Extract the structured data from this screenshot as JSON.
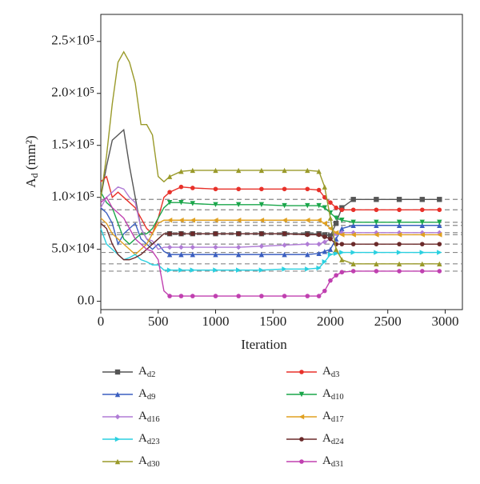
{
  "chart_data": {
    "type": "line",
    "xlabel": "Iteration",
    "ylabel": "Ad (mm²)",
    "x": [
      0,
      50,
      100,
      150,
      200,
      250,
      300,
      350,
      400,
      450,
      500,
      550,
      600,
      700,
      800,
      1000,
      1200,
      1400,
      1600,
      1800,
      1900,
      1950,
      2000,
      2050,
      2100,
      2200,
      2400,
      2600,
      2800,
      2950
    ],
    "xlim": [
      0,
      3150
    ],
    "xticks": [
      0,
      500,
      1000,
      1500,
      2000,
      2500,
      3000
    ],
    "ylim": [
      -8000,
      276000
    ],
    "yticks": [
      {
        "value": 0,
        "label": "0.0"
      },
      {
        "value": 50000,
        "label": "5.0×10⁴"
      },
      {
        "value": 100000,
        "label": "1.0×10⁵"
      },
      {
        "value": 150000,
        "label": "1.5×10⁵"
      },
      {
        "value": 200000,
        "label": "2.0×10⁵"
      },
      {
        "value": 250000,
        "label": "2.5×10⁵"
      }
    ],
    "reference_lines": [
      98000,
      88000,
      76000,
      73000,
      66000,
      64000,
      55000,
      47000,
      36000,
      29000
    ],
    "series": [
      {
        "name": "Ad2",
        "color": "#555555",
        "marker": "square",
        "values": [
          100000,
          130000,
          155000,
          160000,
          165000,
          130000,
          100000,
          70000,
          60000,
          55000,
          60000,
          65000,
          65000,
          65000,
          65000,
          65000,
          65000,
          65000,
          65000,
          65000,
          65000,
          64000,
          63000,
          75000,
          90000,
          98000,
          98000,
          98000,
          98000,
          98000
        ]
      },
      {
        "name": "Ad3",
        "color": "#e8312a",
        "marker": "circle",
        "values": [
          115000,
          120000,
          100000,
          105000,
          100000,
          95000,
          90000,
          80000,
          70000,
          65000,
          80000,
          100000,
          105000,
          110000,
          109000,
          108000,
          108000,
          108000,
          108000,
          108000,
          107000,
          100000,
          95000,
          90000,
          88000,
          88000,
          88000,
          88000,
          88000,
          88000
        ]
      },
      {
        "name": "Ad9",
        "color": "#3b5fc0",
        "marker": "up",
        "values": [
          90000,
          85000,
          75000,
          55000,
          65000,
          70000,
          75000,
          60000,
          55000,
          50000,
          55000,
          48000,
          45000,
          45000,
          45000,
          45000,
          45000,
          45000,
          45000,
          45000,
          46000,
          48000,
          50000,
          60000,
          70000,
          73000,
          73000,
          73000,
          73000,
          73000
        ]
      },
      {
        "name": "Ad10",
        "color": "#1aa64a",
        "marker": "down",
        "values": [
          105000,
          95000,
          90000,
          75000,
          60000,
          55000,
          60000,
          65000,
          65000,
          70000,
          80000,
          90000,
          95000,
          95000,
          94000,
          93000,
          93000,
          93000,
          92000,
          92000,
          92000,
          90000,
          85000,
          80000,
          78000,
          76000,
          76000,
          76000,
          76000,
          76000
        ]
      },
      {
        "name": "Ad16",
        "color": "#b07cd6",
        "marker": "diamond",
        "values": [
          90000,
          100000,
          105000,
          110000,
          108000,
          100000,
          95000,
          70000,
          60000,
          58000,
          50000,
          52000,
          52000,
          52000,
          52000,
          52000,
          52000,
          53000,
          54000,
          55000,
          55000,
          57000,
          60000,
          65000,
          66000,
          66000,
          66000,
          66000,
          66000,
          66000
        ]
      },
      {
        "name": "Ad17",
        "color": "#e0a020",
        "marker": "left",
        "values": [
          80000,
          75000,
          65000,
          60000,
          55000,
          50000,
          45000,
          50000,
          55000,
          65000,
          75000,
          78000,
          78000,
          78000,
          78000,
          78000,
          78000,
          78000,
          78000,
          78000,
          78000,
          75000,
          70000,
          66000,
          64000,
          64000,
          64000,
          64000,
          64000,
          64000
        ]
      },
      {
        "name": "Ad23",
        "color": "#2ad0e0",
        "marker": "right",
        "values": [
          70000,
          55000,
          50000,
          45000,
          40000,
          42000,
          45000,
          40000,
          38000,
          35000,
          35000,
          30000,
          30000,
          30000,
          30000,
          30000,
          30000,
          30000,
          31000,
          31000,
          32000,
          38000,
          45000,
          46000,
          47000,
          47000,
          47000,
          47000,
          47000,
          47000
        ]
      },
      {
        "name": "Ad24",
        "color": "#6b2a2a",
        "marker": "circle",
        "values": [
          75000,
          70000,
          55000,
          45000,
          40000,
          40000,
          42000,
          45000,
          50000,
          55000,
          60000,
          65000,
          65000,
          65000,
          65000,
          65000,
          65000,
          65000,
          65000,
          64000,
          64000,
          62000,
          60000,
          55000,
          55000,
          55000,
          55000,
          55000,
          55000,
          55000
        ]
      },
      {
        "name": "Ad30",
        "color": "#9a9a2a",
        "marker": "up",
        "values": [
          100000,
          140000,
          190000,
          230000,
          240000,
          230000,
          210000,
          170000,
          170000,
          160000,
          120000,
          115000,
          120000,
          125000,
          126000,
          126000,
          126000,
          126000,
          126000,
          126000,
          125000,
          110000,
          80000,
          50000,
          40000,
          36000,
          36000,
          36000,
          36000,
          36000
        ]
      },
      {
        "name": "Ad31",
        "color": "#c040b0",
        "marker": "circle",
        "values": [
          95000,
          100000,
          90000,
          85000,
          80000,
          70000,
          60000,
          55000,
          50000,
          48000,
          40000,
          10000,
          5000,
          5000,
          5000,
          5000,
          5000,
          5000,
          5000,
          5000,
          5000,
          10000,
          20000,
          25000,
          28000,
          29000,
          29000,
          29000,
          29000,
          29000
        ]
      }
    ]
  }
}
